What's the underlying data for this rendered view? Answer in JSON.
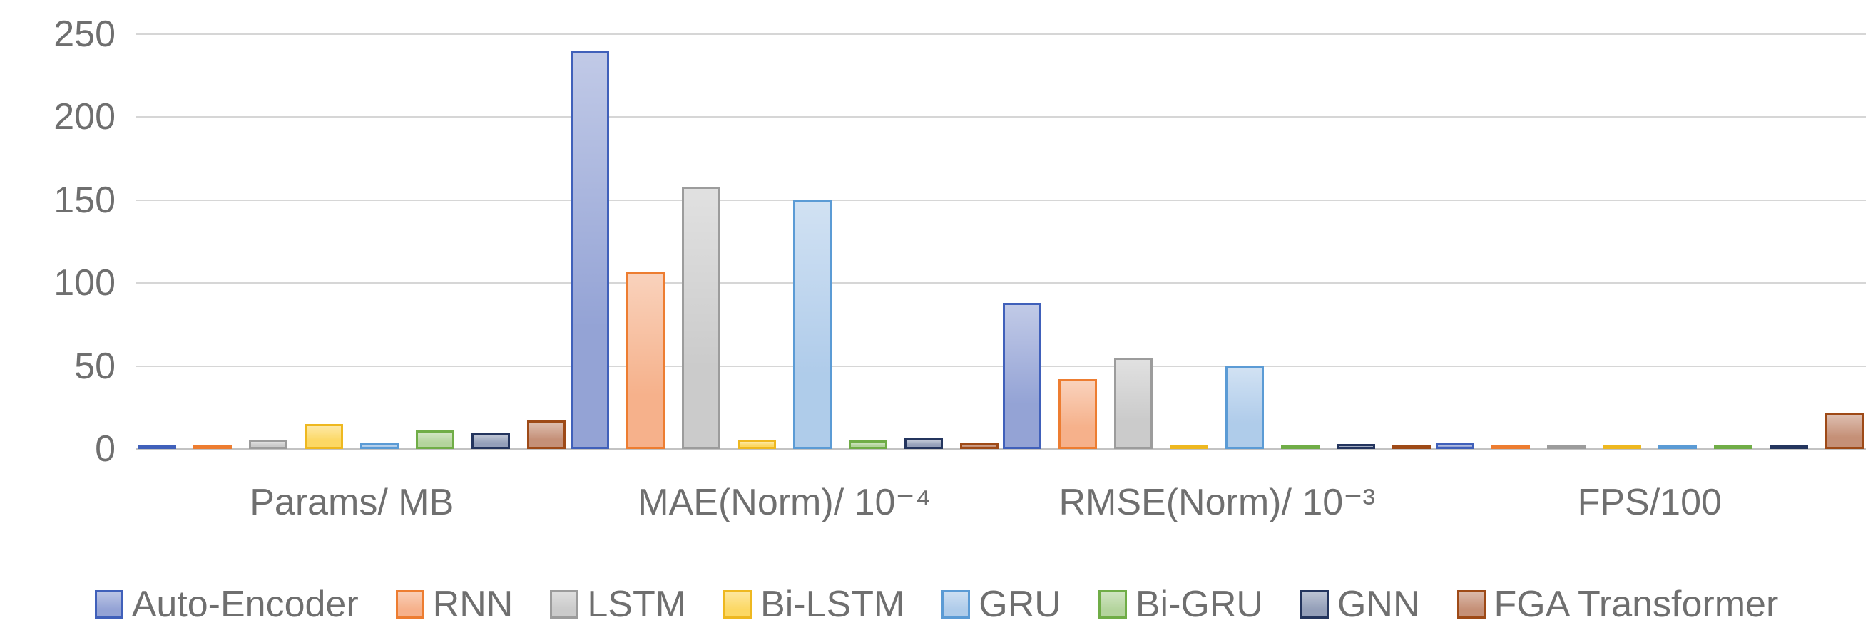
{
  "chart_data": {
    "type": "bar",
    "title": "",
    "xlabel": "",
    "ylabel": "",
    "ylim": [
      0,
      250
    ],
    "y_ticks": [
      250,
      200,
      150,
      100,
      50,
      0
    ],
    "grid": true,
    "legend_position": "bottom",
    "categories": [
      "Params/ MB",
      "MAE(Norm)/ 10⁻⁴",
      "RMSE(Norm)/ 10⁻³",
      "FPS/100"
    ],
    "series": [
      {
        "name": "Auto-Encoder",
        "fill": "#8e9ed3",
        "border": "#4060ba",
        "values": [
          1,
          240,
          88,
          3.5
        ]
      },
      {
        "name": "RNN",
        "fill": "#f5ad85",
        "border": "#ed7d31",
        "values": [
          2,
          107,
          42,
          0.5
        ]
      },
      {
        "name": "LSTM",
        "fill": "#c8c8c8",
        "border": "#9c9c9c",
        "values": [
          5.5,
          158,
          55,
          0.5
        ]
      },
      {
        "name": "Bi-LSTM",
        "fill": "#fcd65c",
        "border": "#eeb820",
        "values": [
          15,
          5.5,
          2.5,
          0.5
        ]
      },
      {
        "name": "GRU",
        "fill": "#abc9e9",
        "border": "#5b9bd5",
        "values": [
          4,
          150,
          50,
          1
        ]
      },
      {
        "name": "Bi-GRU",
        "fill": "#b0d298",
        "border": "#70ad47",
        "values": [
          11,
          5,
          2.5,
          0.5
        ]
      },
      {
        "name": "GNN",
        "fill": "#8e9ab5",
        "border": "#24355e",
        "values": [
          10,
          6.5,
          3,
          0.5
        ]
      },
      {
        "name": "FGA Transformer",
        "fill": "#c28a70",
        "border": "#9e4a17",
        "values": [
          17,
          4,
          2.5,
          22
        ]
      }
    ],
    "colors": {
      "background": "#ffffff",
      "gridline": "#d6d6d6",
      "axis_line": "#c3c3c3",
      "text": "#6f6f6f"
    }
  }
}
